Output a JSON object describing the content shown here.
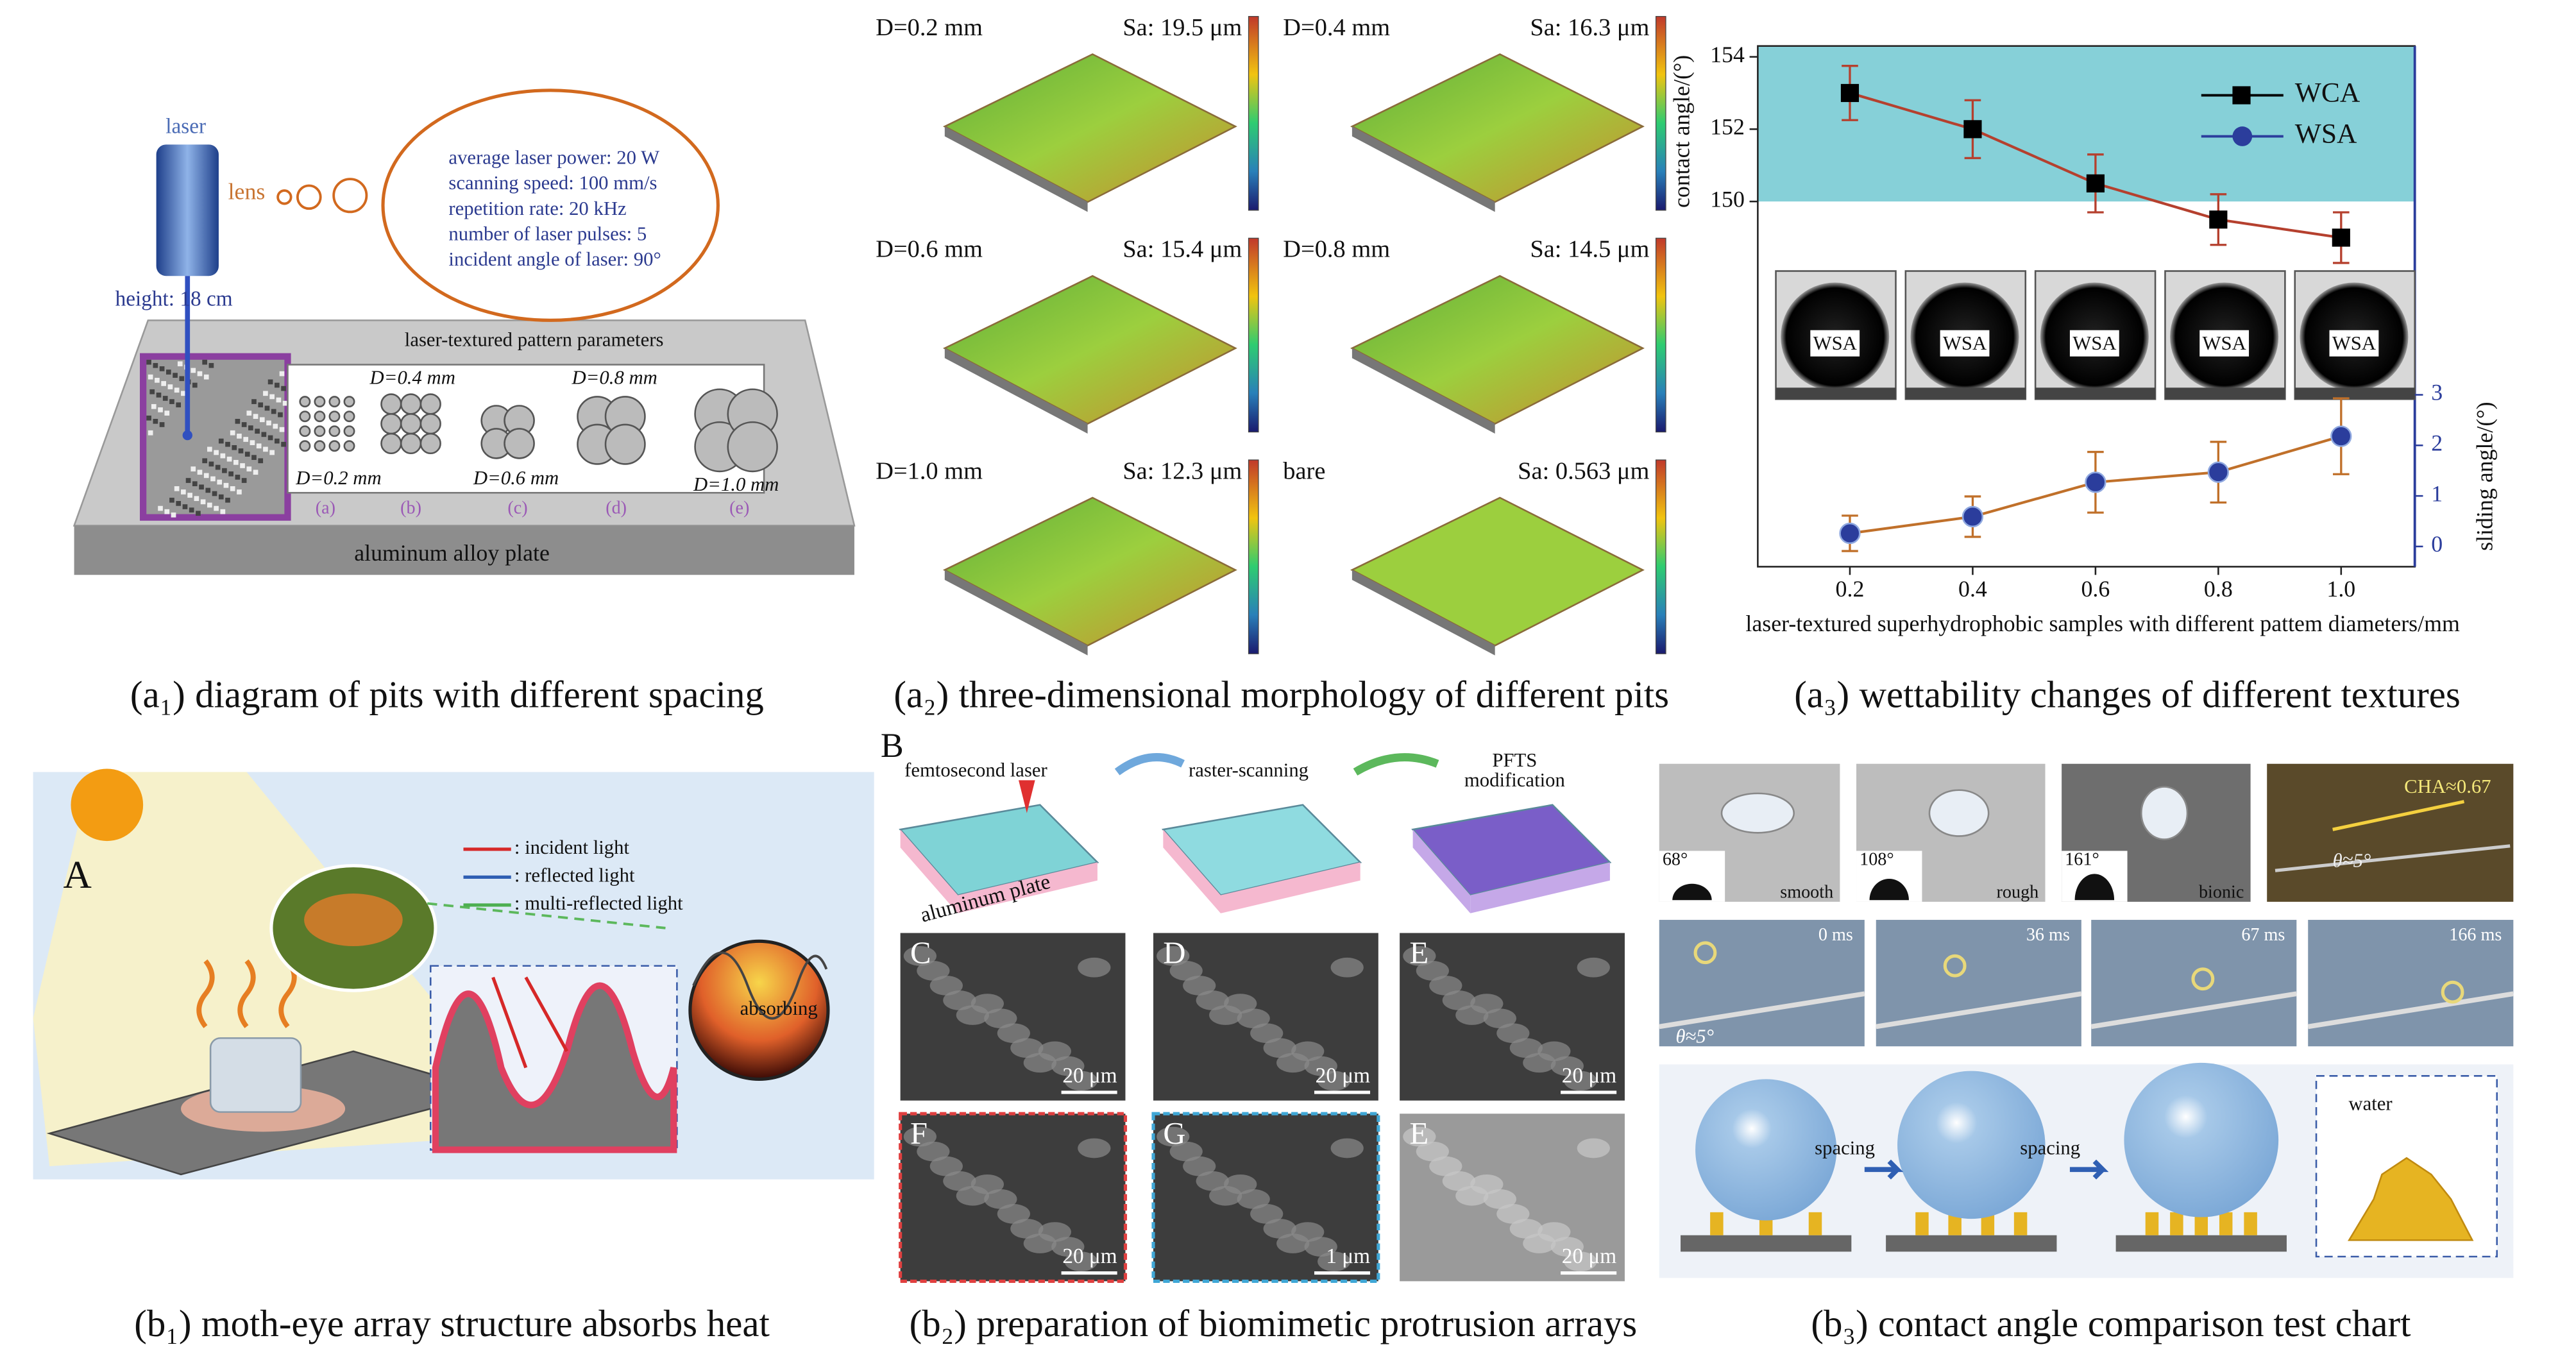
{
  "captions": [
    {
      "label": "(a₁)",
      "text": "diagram of pits with different spacing"
    },
    {
      "label": "(a₂)",
      "text": "three-dimensional morphology of different pits"
    },
    {
      "label": "(a₃)",
      "text": "wettability changes of different textures"
    },
    {
      "label": "(b₁)",
      "text": "moth-eye array structure absorbs heat"
    },
    {
      "label": "(b₂)",
      "text": "preparation of biomimetic protrusion arrays"
    },
    {
      "label": "(b₃)",
      "text": "contact angle comparison test chart"
    }
  ],
  "a1": {
    "laser": "laser",
    "lens": "lens",
    "height": "height: 18 cm",
    "params": [
      "average laser power: 20 W",
      "scanning speed: 100 mm/s",
      "repetition rate: 20 kHz",
      "number of laser pulses: 5",
      "incident angle of laser: 90°"
    ],
    "pattern_title": "laser-textured pattern parameters",
    "diameters": [
      "D=0.2 mm",
      "D=0.4 mm",
      "D=0.6 mm",
      "D=0.8 mm",
      "D=1.0 mm"
    ],
    "sub_labels": [
      "(a)",
      "(b)",
      "(c)",
      "(d)",
      "(e)"
    ],
    "plate": "aluminum alloy plate"
  },
  "a2": {
    "samples": [
      {
        "name": "D=0.2 mm",
        "sa": "Sa: 19.5 μm"
      },
      {
        "name": "D=0.4 mm",
        "sa": "Sa: 16.3 μm"
      },
      {
        "name": "D=0.6 mm",
        "sa": "Sa: 15.4 μm"
      },
      {
        "name": "D=0.8 mm",
        "sa": "Sa: 14.5 μm"
      },
      {
        "name": "D=1.0 mm",
        "sa": "Sa: 12.3 μm"
      },
      {
        "name": "bare",
        "sa": "Sa: 0.563 μm"
      }
    ]
  },
  "chart_data": {
    "type": "line",
    "x": [
      0.2,
      0.4,
      0.6,
      0.8,
      1.0
    ],
    "xlim": [
      0.05,
      1.12
    ],
    "xticks": [
      0.2,
      0.4,
      0.6,
      0.8,
      {
        "value": 1,
        "label": "1.0"
      }
    ],
    "ylim": [
      139.9,
      154.3
    ],
    "yticks": [
      150,
      152,
      154
    ],
    "y2lim": [
      -0.4,
      9.9
    ],
    "y2ticks": [
      0,
      1,
      2,
      3
    ],
    "xlabel": "laser-textured superhydrophobic samples with different pattem diameters/mm",
    "ylabel": "contact angle/(°)",
    "y2label": "sliding angle/(°)",
    "shaded_above": 150,
    "shade_color": "#86d0d8",
    "inset_labels": [
      "WSA",
      "WSA",
      "WSA",
      "WSA",
      "WSA"
    ],
    "series": [
      {
        "name": "WCA",
        "color": "#000000",
        "line_color": "#b5402e",
        "values": [
          153,
          152,
          150.5,
          149.5,
          149
        ],
        "errors": [
          0.75,
          0.8,
          0.8,
          0.7,
          0.7
        ]
      },
      {
        "name": "WSA",
        "color": "#2b3d9c",
        "line_color": "#c0702a",
        "axis": "y2",
        "values": [
          0.26,
          0.59,
          1.27,
          1.47,
          2.18
        ],
        "errors": [
          0.35,
          0.4,
          0.6,
          0.6,
          0.75
        ]
      }
    ]
  },
  "b1": {
    "panel": "A",
    "legend": [
      ": incident light",
      ": reflected light",
      ": multi-reflected light"
    ],
    "absorbing": "absorbing"
  },
  "b2": {
    "panel": "B",
    "steps": [
      [
        "femtosecond laser"
      ],
      [
        "raster-scanning"
      ],
      [
        "PFTS",
        "modification"
      ]
    ],
    "plate": "aluminum plate",
    "images": [
      {
        "letter": "C",
        "scale": "20 μm"
      },
      {
        "letter": "D",
        "scale": "20 μm"
      },
      {
        "letter": "E",
        "scale": "20 μm"
      },
      {
        "letter": "F",
        "scale": "20 μm"
      },
      {
        "letter": "G",
        "scale": "1 μm"
      },
      {
        "letter": "E",
        "scale": "20 μm"
      }
    ]
  },
  "b3": {
    "photos": [
      {
        "angle": "68°",
        "name": "smooth"
      },
      {
        "angle": "108°",
        "name": "rough"
      },
      {
        "angle": "161°",
        "name": "bionic"
      }
    ],
    "cha": "CHA≈0.67",
    "tilt": "θ≈5°",
    "times": [
      "0 ms",
      "36 ms",
      "67 ms",
      "166 ms"
    ],
    "tilt2": "θ≈5°",
    "spacing": [
      "spacing",
      "spacing"
    ],
    "water": "water"
  }
}
